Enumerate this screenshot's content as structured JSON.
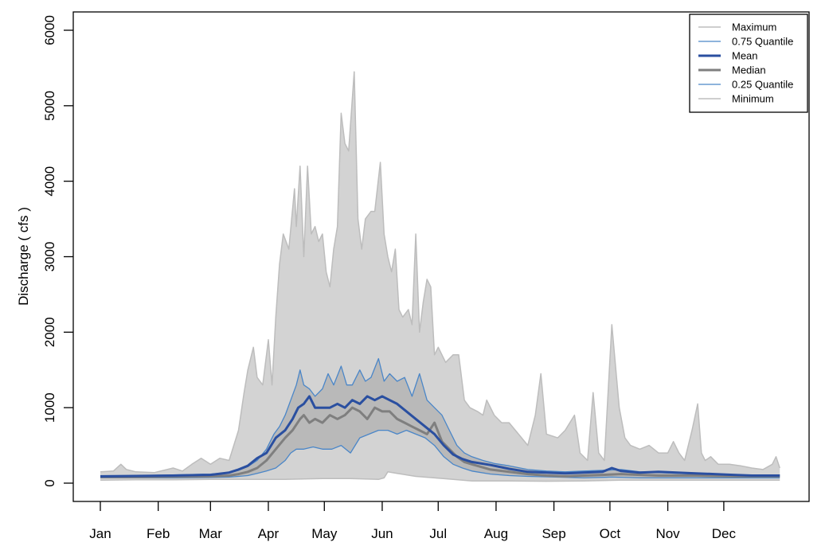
{
  "chart_data": {
    "type": "area",
    "title": "",
    "xlabel": "",
    "ylabel": "Discharge ( cfs )",
    "xlim_day": [
      1,
      365
    ],
    "ylim": [
      0,
      6000
    ],
    "yticks": [
      0,
      1000,
      2000,
      3000,
      4000,
      5000,
      6000
    ],
    "xticks": [
      {
        "label": "Jan",
        "day": 1
      },
      {
        "label": "Feb",
        "day": 32
      },
      {
        "label": "Mar",
        "day": 60
      },
      {
        "label": "Apr",
        "day": 91
      },
      {
        "label": "May",
        "day": 121
      },
      {
        "label": "Jun",
        "day": 152
      },
      {
        "label": "Jul",
        "day": 182
      },
      {
        "label": "Aug",
        "day": 213
      },
      {
        "label": "Sep",
        "day": 244
      },
      {
        "label": "Oct",
        "day": 274
      },
      {
        "label": "Nov",
        "day": 305
      },
      {
        "label": "Dec",
        "day": 335
      }
    ],
    "legend_position": "top-right",
    "colors": {
      "outer_band": "#d3d3d3",
      "inner_band": "#b9b9b9",
      "max_min_line": "#bdbdbd",
      "quantile_line": "#4a86c8",
      "mean_line": "#2a4fa0",
      "median_line": "#7f7f7f"
    },
    "series": [
      {
        "name": "Maximum",
        "key": "max",
        "x": [
          1,
          8,
          12,
          15,
          20,
          30,
          40,
          45,
          50,
          55,
          60,
          65,
          70,
          75,
          78,
          80,
          83,
          85,
          88,
          91,
          93,
          95,
          97,
          99,
          102,
          105,
          106,
          108,
          110,
          112,
          114,
          116,
          118,
          120,
          122,
          124,
          126,
          128,
          130,
          132,
          134,
          137,
          139,
          141,
          143,
          146,
          148,
          151,
          153,
          155,
          157,
          159,
          161,
          163,
          166,
          168,
          170,
          172,
          174,
          176,
          178,
          180,
          182,
          186,
          190,
          193,
          196,
          199,
          203,
          206,
          208,
          212,
          216,
          220,
          225,
          230,
          234,
          237,
          240,
          246,
          250,
          255,
          258,
          262,
          265,
          268,
          271,
          275,
          279,
          282,
          285,
          290,
          295,
          300,
          305,
          308,
          311,
          314,
          318,
          321,
          323,
          325,
          328,
          332,
          338,
          344,
          350,
          356,
          361,
          363,
          365
        ],
        "y": [
          150,
          160,
          250,
          180,
          150,
          140,
          200,
          160,
          250,
          330,
          250,
          330,
          300,
          700,
          1200,
          1500,
          1800,
          1400,
          1300,
          1900,
          1300,
          2200,
          2900,
          3300,
          3100,
          3900,
          3400,
          4200,
          3000,
          4200,
          3300,
          3400,
          3200,
          3300,
          2800,
          2600,
          3100,
          3400,
          4900,
          4500,
          4400,
          5450,
          3500,
          3100,
          3500,
          3600,
          3600,
          4250,
          3300,
          3000,
          2800,
          3100,
          2300,
          2200,
          2300,
          2100,
          3300,
          2000,
          2400,
          2700,
          2600,
          1700,
          1800,
          1600,
          1700,
          1700,
          1100,
          1000,
          950,
          900,
          1100,
          900,
          800,
          800,
          650,
          500,
          900,
          1450,
          650,
          600,
          700,
          900,
          400,
          300,
          1200,
          400,
          300,
          2100,
          1000,
          600,
          500,
          450,
          500,
          400,
          400,
          550,
          400,
          300,
          700,
          1050,
          400,
          300,
          350,
          250,
          250,
          230,
          200,
          180,
          250,
          350,
          200
        ]
      },
      {
        "name": "0.75 Quantile",
        "key": "q75",
        "x": [
          1,
          20,
          40,
          60,
          70,
          75,
          80,
          85,
          90,
          94,
          97,
          100,
          103,
          106,
          108,
          110,
          113,
          116,
          120,
          123,
          126,
          130,
          133,
          136,
          140,
          143,
          146,
          150,
          153,
          156,
          160,
          164,
          168,
          172,
          176,
          180,
          184,
          188,
          192,
          196,
          200,
          206,
          212,
          220,
          230,
          240,
          250,
          260,
          270,
          280,
          290,
          300,
          310,
          320,
          330,
          340,
          350,
          365
        ],
        "y": [
          100,
          100,
          110,
          120,
          140,
          170,
          220,
          300,
          450,
          650,
          750,
          900,
          1100,
          1300,
          1500,
          1300,
          1250,
          1150,
          1250,
          1450,
          1300,
          1550,
          1300,
          1300,
          1500,
          1350,
          1400,
          1650,
          1350,
          1450,
          1350,
          1400,
          1150,
          1450,
          1100,
          1000,
          900,
          700,
          500,
          400,
          350,
          300,
          260,
          230,
          180,
          160,
          150,
          160,
          170,
          180,
          150,
          140,
          130,
          120,
          120,
          110,
          100,
          110
        ]
      },
      {
        "name": "Mean",
        "key": "mean",
        "x": [
          1,
          20,
          40,
          60,
          70,
          75,
          80,
          85,
          90,
          95,
          100,
          104,
          107,
          110,
          113,
          116,
          120,
          124,
          128,
          132,
          136,
          140,
          144,
          148,
          152,
          156,
          160,
          165,
          170,
          175,
          180,
          185,
          190,
          195,
          200,
          210,
          220,
          230,
          240,
          250,
          260,
          270,
          275,
          280,
          290,
          300,
          310,
          320,
          330,
          340,
          350,
          365
        ],
        "y": [
          90,
          95,
          100,
          110,
          140,
          180,
          230,
          330,
          400,
          600,
          700,
          850,
          1000,
          1050,
          1150,
          1000,
          1000,
          1000,
          1050,
          1000,
          1100,
          1050,
          1150,
          1100,
          1150,
          1100,
          1050,
          950,
          850,
          750,
          650,
          500,
          380,
          320,
          280,
          240,
          190,
          150,
          140,
          130,
          140,
          150,
          200,
          160,
          140,
          150,
          140,
          130,
          120,
          110,
          100,
          100
        ]
      },
      {
        "name": "Median",
        "key": "median",
        "x": [
          1,
          20,
          40,
          60,
          70,
          75,
          80,
          85,
          90,
          95,
          100,
          104,
          108,
          110,
          113,
          116,
          120,
          124,
          128,
          132,
          136,
          140,
          144,
          148,
          152,
          156,
          160,
          164,
          168,
          172,
          176,
          180,
          184,
          188,
          192,
          196,
          200,
          210,
          220,
          230,
          240,
          250,
          260,
          270,
          280,
          290,
          300,
          320,
          340,
          365
        ],
        "y": [
          80,
          80,
          85,
          90,
          100,
          120,
          150,
          200,
          300,
          450,
          600,
          700,
          850,
          900,
          800,
          850,
          800,
          900,
          850,
          900,
          1000,
          950,
          850,
          1000,
          950,
          950,
          850,
          800,
          750,
          700,
          650,
          800,
          550,
          450,
          350,
          280,
          250,
          180,
          150,
          120,
          100,
          90,
          100,
          110,
          120,
          110,
          100,
          100,
          90,
          90
        ]
      },
      {
        "name": "0.25 Quantile",
        "key": "q25",
        "x": [
          1,
          20,
          40,
          60,
          70,
          75,
          80,
          85,
          90,
          95,
          100,
          103,
          106,
          110,
          115,
          120,
          125,
          130,
          135,
          140,
          145,
          150,
          155,
          160,
          165,
          170,
          175,
          180,
          185,
          190,
          195,
          200,
          210,
          220,
          230,
          245,
          260,
          275,
          290,
          305,
          320,
          340,
          365
        ],
        "y": [
          70,
          70,
          70,
          75,
          80,
          90,
          100,
          130,
          160,
          200,
          300,
          400,
          450,
          450,
          480,
          450,
          450,
          500,
          400,
          600,
          650,
          700,
          700,
          650,
          700,
          650,
          600,
          500,
          350,
          250,
          200,
          160,
          120,
          100,
          90,
          80,
          70,
          80,
          70,
          70,
          70,
          70,
          70
        ]
      },
      {
        "name": "Minimum",
        "key": "min",
        "x": [
          1,
          20,
          40,
          60,
          80,
          100,
          120,
          135,
          150,
          153,
          155,
          160,
          170,
          180,
          190,
          200,
          220,
          240,
          260,
          280,
          300,
          320,
          340,
          365
        ],
        "y": [
          40,
          45,
          45,
          50,
          50,
          50,
          60,
          60,
          50,
          70,
          150,
          130,
          90,
          70,
          50,
          30,
          30,
          25,
          30,
          40,
          40,
          40,
          40,
          40
        ]
      }
    ]
  }
}
